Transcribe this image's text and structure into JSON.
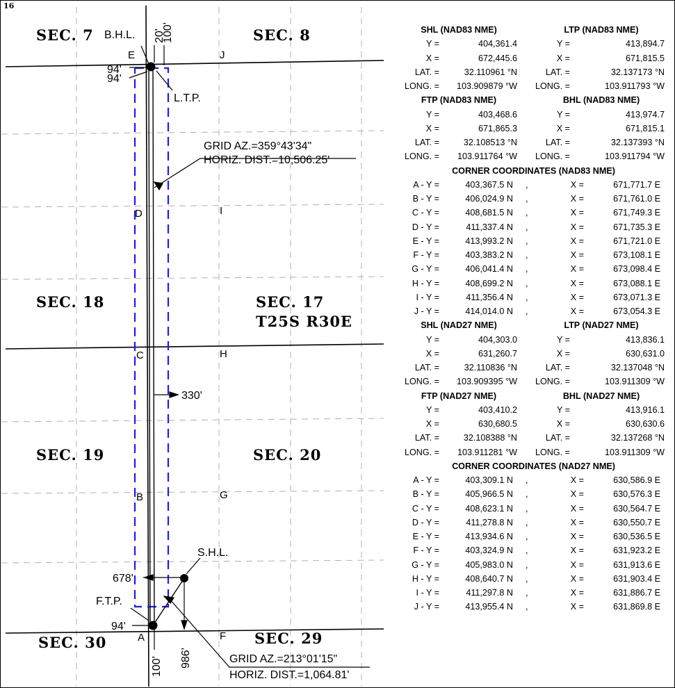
{
  "page_number": "16",
  "sections": {
    "s7": "SEC.  7",
    "s8": "SEC.  8",
    "s18": "SEC.  18",
    "s17": "SEC.  17",
    "township": "T25S  R30E",
    "s19": "SEC.  19",
    "s20": "SEC.  20",
    "s30": "SEC.  30",
    "s29": "SEC.  29"
  },
  "labels": {
    "bhl": "B.H.L.",
    "ltp": "L.T.P.",
    "shl": "S.H.L.",
    "ftp": "F.T.P.",
    "corner_e": "E",
    "corner_j": "J",
    "corner_d": "D",
    "corner_i": "I",
    "corner_c": "C",
    "corner_h": "H",
    "corner_b": "B",
    "corner_g": "G",
    "corner_a": "A",
    "corner_f": "F"
  },
  "dimensions": {
    "d20": "20'",
    "d100_top": "100'",
    "d94_a": "94'",
    "d94_b": "94'",
    "d330": "330'",
    "d678": "678'",
    "d94_bottom": "94'",
    "d100_bottom": "100'",
    "d986": "986'"
  },
  "bearings": {
    "upper_az": "GRID  AZ.=359°43'34\"",
    "upper_dist": "HORIZ.  DIST.=10,506.25'",
    "lower_az": "GRID  AZ.=213°01'15\"",
    "lower_dist": "HORIZ.  DIST.=1,064.81'"
  },
  "nad83": {
    "shl": {
      "title": "SHL (NAD83 NME)",
      "y_label": "Y =",
      "y": "404,361.4",
      "x_label": "X =",
      "x": "672,445.6",
      "lat_label": "LAT. =",
      "lat": "32.110961 °N",
      "long_label": "LONG. =",
      "long": "103.909879 °W"
    },
    "ltp": {
      "title": "LTP (NAD83 NME)",
      "y_label": "Y =",
      "y": "413,894.7",
      "x_label": "X =",
      "x": "671,815.5",
      "lat_label": "LAT. =",
      "lat": "32.137173 °N",
      "long_label": "LONG. =",
      "long": "103.911793 °W"
    },
    "ftp": {
      "title": "FTP (NAD83 NME)",
      "y_label": "Y =",
      "y": "403,468.6",
      "x_label": "X =",
      "x": "671,865.3",
      "lat_label": "LAT. =",
      "lat": "32.108513 °N",
      "long_label": "LONG. =",
      "long": "103.911764 °W"
    },
    "bhl": {
      "title": "BHL (NAD83 NME)",
      "y_label": "Y =",
      "y": "413,974.7",
      "x_label": "X =",
      "x": "671,815.1",
      "lat_label": "LAT. =",
      "lat": "32.137393 °N",
      "long_label": "LONG. =",
      "long": "103.911794 °W"
    },
    "corners_title": "CORNER COORDINATES (NAD83 NME)",
    "corners": [
      {
        "label": "A - Y =",
        "y": "403,367.5 N",
        "sep": ",",
        "x_label": "X =",
        "x": "671,771.7 E"
      },
      {
        "label": "B - Y =",
        "y": "406,024.9 N",
        "sep": ",",
        "x_label": "X =",
        "x": "671,761.0 E"
      },
      {
        "label": "C - Y =",
        "y": "408,681.5 N",
        "sep": ",",
        "x_label": "X =",
        "x": "671,749.3 E"
      },
      {
        "label": "D - Y =",
        "y": "411,337.4 N",
        "sep": ",",
        "x_label": "X =",
        "x": "671,735.3 E"
      },
      {
        "label": "E - Y =",
        "y": "413,993.2 N",
        "sep": ",",
        "x_label": "X =",
        "x": "671,721.0 E"
      },
      {
        "label": "F - Y =",
        "y": "403,383.2 N",
        "sep": ",",
        "x_label": "X =",
        "x": "673,108.1 E"
      },
      {
        "label": "G - Y =",
        "y": "406,041.4 N",
        "sep": ",",
        "x_label": "X =",
        "x": "673,098.4 E"
      },
      {
        "label": "H - Y =",
        "y": "408,699.2 N",
        "sep": ",",
        "x_label": "X =",
        "x": "673,088.1 E"
      },
      {
        "label": "I - Y =",
        "y": "411,356.4 N",
        "sep": ",",
        "x_label": "X =",
        "x": "673,071.3 E"
      },
      {
        "label": "J - Y =",
        "y": "414,014.0 N",
        "sep": ",",
        "x_label": "X =",
        "x": "673,054.3 E"
      }
    ]
  },
  "nad27": {
    "shl": {
      "title": "SHL (NAD27 NME)",
      "y_label": "Y =",
      "y": "404,303.0",
      "x_label": "X =",
      "x": "631,260.7",
      "lat_label": "LAT. =",
      "lat": "32.110836 °N",
      "long_label": "LONG. =",
      "long": "103.909395 °W"
    },
    "ltp": {
      "title": "LTP (NAD27 NME)",
      "y_label": "Y =",
      "y": "413,836.1",
      "x_label": "X =",
      "x": "630,631.0",
      "lat_label": "LAT. =",
      "lat": "32.137048 °N",
      "long_label": "LONG. =",
      "long": "103.911309 °W"
    },
    "ftp": {
      "title": "FTP (NAD27 NME)",
      "y_label": "Y =",
      "y": "403,410.2",
      "x_label": "X =",
      "x": "630,680.5",
      "lat_label": "LAT. =",
      "lat": "32.108388 °N",
      "long_label": "LONG. =",
      "long": "103.911281 °W"
    },
    "bhl": {
      "title": "BHL (NAD27 NME)",
      "y_label": "Y =",
      "y": "413,916.1",
      "x_label": "X =",
      "x": "630,630.6",
      "lat_label": "LAT. =",
      "lat": "32.137268 °N",
      "long_label": "LONG. =",
      "long": "103.911309 °W"
    },
    "corners_title": "CORNER COORDINATES (NAD27 NME)",
    "corners": [
      {
        "label": "A - Y =",
        "y": "403,309.1 N",
        "sep": ",",
        "x_label": "X =",
        "x": "630,586.9 E"
      },
      {
        "label": "B - Y =",
        "y": "405,966.5 N",
        "sep": ",",
        "x_label": "X =",
        "x": "630,576.3 E"
      },
      {
        "label": "C - Y =",
        "y": "408,623.1 N",
        "sep": ",",
        "x_label": "X =",
        "x": "630,564.7 E"
      },
      {
        "label": "D - Y =",
        "y": "411,278.8 N",
        "sep": ",",
        "x_label": "X =",
        "x": "630,550.7 E"
      },
      {
        "label": "E - Y =",
        "y": "413,934.6 N",
        "sep": ",",
        "x_label": "X =",
        "x": "630,536.5 E"
      },
      {
        "label": "F - Y =",
        "y": "403,324.9 N",
        "sep": ",",
        "x_label": "X =",
        "x": "631,923.2 E"
      },
      {
        "label": "G - Y =",
        "y": "405,983.0 N",
        "sep": ",",
        "x_label": "X =",
        "x": "631,913.6 E"
      },
      {
        "label": "H - Y =",
        "y": "408,640.7 N",
        "sep": ",",
        "x_label": "X =",
        "x": "631,903.4 E"
      },
      {
        "label": "I - Y =",
        "y": "411,297.8 N",
        "sep": ",",
        "x_label": "X =",
        "x": "631,886.7 E"
      },
      {
        "label": "J - Y =",
        "y": "413,955.4 N",
        "sep": ",",
        "x_label": "X =",
        "x": "631,869.8 E"
      }
    ]
  },
  "colors": {
    "lease_outline": "#1a1aff",
    "grid_dash": "#b0b0b0",
    "line": "#000000"
  }
}
